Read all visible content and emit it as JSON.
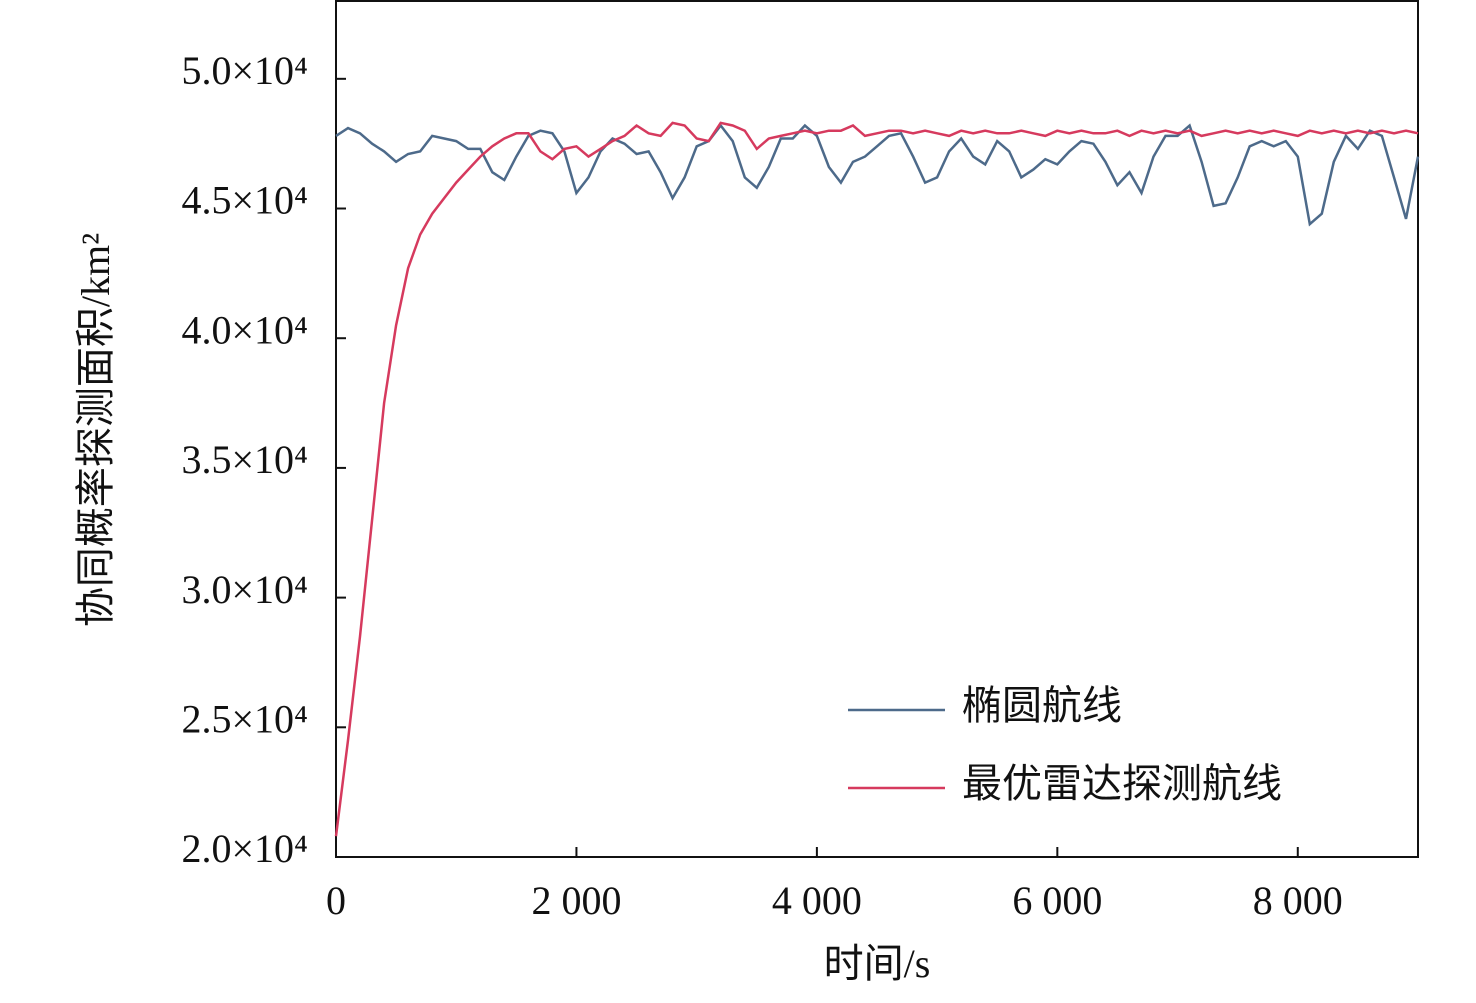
{
  "chart_data": {
    "type": "line",
    "y_label": "协同概率探测面积/km²",
    "x_label": "时间/s",
    "xlim": [
      0,
      9000
    ],
    "ylim": [
      20000,
      53000
    ],
    "xticks": [
      0,
      {
        "value": 2000,
        "label": "2 000"
      },
      {
        "value": 4000,
        "label": "4 000"
      },
      {
        "value": 6000,
        "label": "6 000"
      },
      {
        "value": 8000,
        "label": "8 000"
      }
    ],
    "yticks": [
      {
        "value": 20000,
        "label": "2.0×10⁴"
      },
      {
        "value": 25000,
        "label": "2.5×10⁴"
      },
      {
        "value": 30000,
        "label": "3.0×10⁴"
      },
      {
        "value": 35000,
        "label": "3.5×10⁴"
      },
      {
        "value": 40000,
        "label": "4.0×10⁴"
      },
      {
        "value": 45000,
        "label": "4.5×10⁴"
      },
      {
        "value": 50000,
        "label": "5.0×10⁴"
      }
    ],
    "legend": "lower right",
    "x": [
      0,
      100,
      200,
      300,
      400,
      500,
      600,
      700,
      800,
      900,
      1000,
      1100,
      1200,
      1300,
      1400,
      1500,
      1600,
      1700,
      1800,
      1900,
      2000,
      2100,
      2200,
      2300,
      2400,
      2500,
      2600,
      2700,
      2800,
      2900,
      3000,
      3100,
      3200,
      3300,
      3400,
      3500,
      3600,
      3700,
      3800,
      3900,
      4000,
      4100,
      4200,
      4300,
      4400,
      4500,
      4600,
      4700,
      4800,
      4900,
      5000,
      5100,
      5200,
      5300,
      5400,
      5500,
      5600,
      5700,
      5800,
      5900,
      6000,
      6100,
      6200,
      6300,
      6400,
      6500,
      6600,
      6700,
      6800,
      6900,
      7000,
      7100,
      7200,
      7300,
      7400,
      7500,
      7600,
      7700,
      7800,
      7900,
      8000,
      8100,
      8200,
      8300,
      8400,
      8500,
      8600,
      8700,
      8800,
      8900,
      9000
    ],
    "series": [
      {
        "name": "椭圆航线",
        "color": "#4d6a8a",
        "values": [
          47800,
          48100,
          47900,
          47500,
          47200,
          46800,
          47100,
          47200,
          47800,
          47700,
          47600,
          47300,
          47300,
          46400,
          46100,
          47000,
          47800,
          48000,
          47900,
          47200,
          45600,
          46200,
          47200,
          47700,
          47500,
          47100,
          47200,
          46400,
          45400,
          46200,
          47400,
          47600,
          48200,
          47600,
          46200,
          45800,
          46600,
          47700,
          47700,
          48200,
          47800,
          46600,
          46000,
          46800,
          47000,
          47400,
          47800,
          47900,
          47000,
          46000,
          46200,
          47200,
          47700,
          47000,
          46700,
          47600,
          47200,
          46200,
          46500,
          46900,
          46700,
          47200,
          47600,
          47500,
          46800,
          45900,
          46400,
          45600,
          47000,
          47800,
          47800,
          48200,
          46800,
          45100,
          45200,
          46200,
          47400,
          47600,
          47400,
          47600,
          47000,
          44400,
          44800,
          46800,
          47800,
          47300,
          48000,
          47800,
          46200,
          44600,
          47000
        ]
      },
      {
        "name": "最优雷达探测航线",
        "color": "#d63a5e",
        "values": [
          20800,
          24500,
          28500,
          33000,
          37500,
          40500,
          42700,
          44000,
          44800,
          45400,
          46000,
          46500,
          47000,
          47400,
          47700,
          47900,
          47900,
          47200,
          46900,
          47300,
          47400,
          47000,
          47300,
          47600,
          47800,
          48200,
          47900,
          47800,
          48300,
          48200,
          47700,
          47600,
          48300,
          48200,
          48000,
          47300,
          47700,
          47800,
          47900,
          48000,
          47900,
          48000,
          48000,
          48200,
          47800,
          47900,
          48000,
          48000,
          47900,
          48000,
          47900,
          47800,
          48000,
          47900,
          48000,
          47900,
          47900,
          48000,
          47900,
          47800,
          48000,
          47900,
          48000,
          47900,
          47900,
          48000,
          47800,
          48000,
          47900,
          48000,
          47900,
          48000,
          47800,
          47900,
          48000,
          47900,
          48000,
          47900,
          48000,
          47900,
          47800,
          48000,
          47900,
          48000,
          47900,
          48000,
          47900,
          48000,
          47900,
          48000,
          47900
        ]
      }
    ]
  }
}
